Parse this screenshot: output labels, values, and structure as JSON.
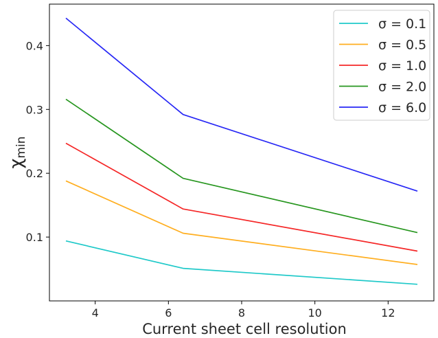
{
  "chart_data": {
    "type": "line",
    "xlabel": "Current sheet cell resolution",
    "ylabel": "χ",
    "ylabel_subscript": "min",
    "xlim": [
      2.75,
      13.25
    ],
    "ylim": [
      0.0,
      0.465
    ],
    "xticks": [
      4,
      6,
      8,
      10,
      12
    ],
    "xtick_labels": [
      "4",
      "6",
      "8",
      "10",
      "12"
    ],
    "yticks": [
      0.1,
      0.2,
      0.3,
      0.4
    ],
    "ytick_labels": [
      "0.1",
      "0.2",
      "0.3",
      "0.4"
    ],
    "x": [
      3.2,
      6.4,
      12.8
    ],
    "grid": false,
    "legend_position": "top-right",
    "series": [
      {
        "name": "σ = 0.1",
        "color": "#1fc9c9",
        "values": [
          0.094,
          0.051,
          0.026
        ]
      },
      {
        "name": "σ = 0.5",
        "color": "#ffae1f",
        "values": [
          0.188,
          0.106,
          0.057
        ]
      },
      {
        "name": "σ = 1.0",
        "color": "#f52727",
        "values": [
          0.247,
          0.144,
          0.078
        ]
      },
      {
        "name": "σ = 2.0",
        "color": "#27961f",
        "values": [
          0.316,
          0.192,
          0.107
        ]
      },
      {
        "name": "σ = 6.0",
        "color": "#2727f5",
        "values": [
          0.443,
          0.292,
          0.172
        ]
      }
    ]
  }
}
